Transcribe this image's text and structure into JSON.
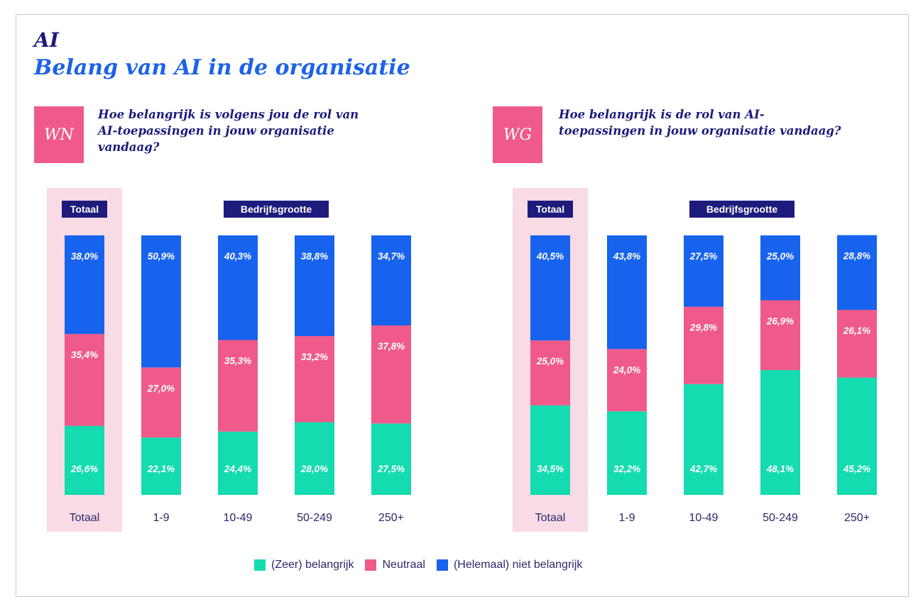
{
  "section_label": "AI",
  "title": "Belang van AI in de organisatie",
  "colors": {
    "zeer": "#14dbb0",
    "neutraal": "#ef5a8a",
    "niet": "#1763ee",
    "highlight": "#f8dbe4",
    "navy": "#1d1b7c",
    "pink_tag": "#ef5a8a"
  },
  "legend": [
    "(Zeer) belangrijk",
    "Neutraal",
    "(Helemaal) niet belangrijk"
  ],
  "chart_data": [
    {
      "type": "bar",
      "stacked": true,
      "tag": "WN",
      "title": "Hoe belangrijk is volgens jou de rol van AI-toepassingen in jouw organisatie vandaag?",
      "total_label": "Totaal",
      "group_label": "Bedrijfsgrootte",
      "categories": [
        "Totaal",
        "1-9",
        "10-49",
        "50-249",
        "250+"
      ],
      "ylim": [
        0,
        100
      ],
      "series": [
        {
          "name": "(Zeer) belangrijk",
          "values": [
            26.6,
            22.1,
            24.4,
            28.0,
            27.5
          ],
          "labels": [
            "26,6%",
            "22,1%",
            "24,4%",
            "28,0%",
            "27,5%"
          ]
        },
        {
          "name": "Neutraal",
          "values": [
            35.4,
            27.0,
            35.3,
            33.2,
            37.8
          ],
          "labels": [
            "35,4%",
            "27,0%",
            "35,3%",
            "33,2%",
            "37,8%"
          ]
        },
        {
          "name": "(Helemaal) niet belangrijk",
          "values": [
            38.0,
            50.9,
            40.3,
            38.8,
            34.7
          ],
          "labels": [
            "38,0%",
            "50,9%",
            "40,3%",
            "38,8%",
            "34,7%"
          ]
        }
      ]
    },
    {
      "type": "bar",
      "stacked": true,
      "tag": "WG",
      "title": "Hoe belangrijk is de rol van AI-toepassingen in jouw organisatie vandaag?",
      "total_label": "Totaal",
      "group_label": "Bedrijfsgrootte",
      "categories": [
        "Totaal",
        "1-9",
        "10-49",
        "50-249",
        "250+"
      ],
      "ylim": [
        0,
        100
      ],
      "series": [
        {
          "name": "(Zeer) belangrijk",
          "values": [
            34.5,
            32.2,
            42.7,
            48.1,
            45.2
          ],
          "labels": [
            "34,5%",
            "32,2%",
            "42,7%",
            "48,1%",
            "45,2%"
          ]
        },
        {
          "name": "Neutraal",
          "values": [
            25.0,
            24.0,
            29.8,
            26.9,
            26.1
          ],
          "labels": [
            "25,0%",
            "24,0%",
            "29,8%",
            "26,9%",
            "26,1%"
          ]
        },
        {
          "name": "(Helemaal) niet belangrijk",
          "values": [
            40.5,
            43.8,
            27.5,
            25.0,
            28.8
          ],
          "labels": [
            "40,5%",
            "43,8%",
            "27,5%",
            "25,0%",
            "28,8%"
          ]
        }
      ]
    }
  ]
}
